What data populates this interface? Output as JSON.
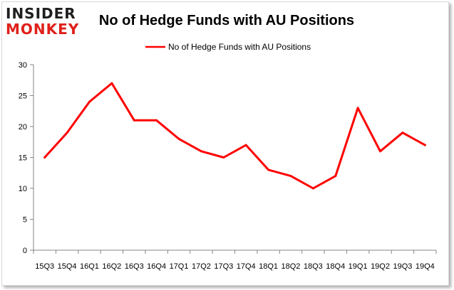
{
  "logo": {
    "line1": "INSIDER",
    "line2": "MONKEY"
  },
  "chart_data": {
    "type": "line",
    "title": "No of Hedge Funds with AU Positions",
    "categories": [
      "15Q3",
      "15Q4",
      "16Q1",
      "16Q2",
      "16Q3",
      "16Q4",
      "17Q1",
      "17Q2",
      "17Q3",
      "17Q4",
      "18Q1",
      "18Q2",
      "18Q3",
      "18Q4",
      "19Q1",
      "19Q2",
      "19Q3",
      "19Q4"
    ],
    "series": [
      {
        "name": "No of Hedge Funds with AU Positions",
        "values": [
          15,
          19,
          24,
          27,
          21,
          21,
          18,
          16,
          15,
          17,
          13,
          12,
          10,
          12,
          23,
          16,
          19,
          17
        ],
        "color": "#ff0000"
      }
    ],
    "ylim": [
      0,
      30
    ],
    "yticks": [
      0,
      5,
      10,
      15,
      20,
      25,
      30
    ],
    "grid": false,
    "legend": "top-center",
    "xlabel": "",
    "ylabel": ""
  }
}
